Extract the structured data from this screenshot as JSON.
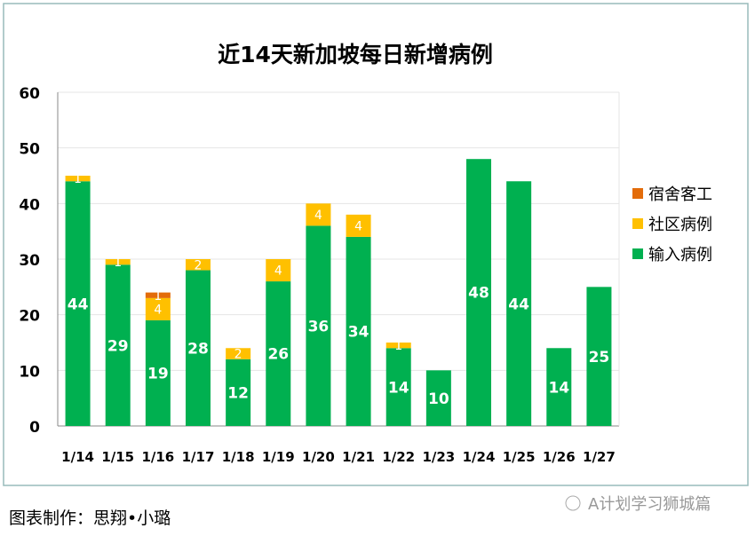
{
  "chart_data": {
    "type": "bar",
    "stacked": true,
    "title": "近14天新加坡每日新增病例",
    "categories": [
      "1/14",
      "1/15",
      "1/16",
      "1/17",
      "1/18",
      "1/19",
      "1/20",
      "1/21",
      "1/22",
      "1/23",
      "1/24",
      "1/25",
      "1/26",
      "1/27"
    ],
    "series": [
      {
        "name": "输入病例",
        "color": "#00b050",
        "values": [
          44,
          29,
          19,
          28,
          12,
          26,
          36,
          34,
          14,
          10,
          48,
          44,
          14,
          25
        ]
      },
      {
        "name": "社区病例",
        "color": "#ffc000",
        "values": [
          1,
          1,
          4,
          2,
          2,
          4,
          4,
          4,
          1,
          0,
          0,
          0,
          0,
          0
        ]
      },
      {
        "name": "宿舍客工",
        "color": "#e36c0a",
        "values": [
          0,
          0,
          1,
          0,
          0,
          0,
          0,
          0,
          0,
          0,
          0,
          0,
          0,
          0
        ]
      }
    ],
    "ylim": [
      0,
      60
    ],
    "yticks": [
      0,
      10,
      20,
      30,
      40,
      50,
      60
    ],
    "grid": true,
    "legend_position": "right"
  },
  "footer": {
    "credit": "图表制作：思翔•小璐",
    "watermark": "A计划学习狮城篇"
  }
}
